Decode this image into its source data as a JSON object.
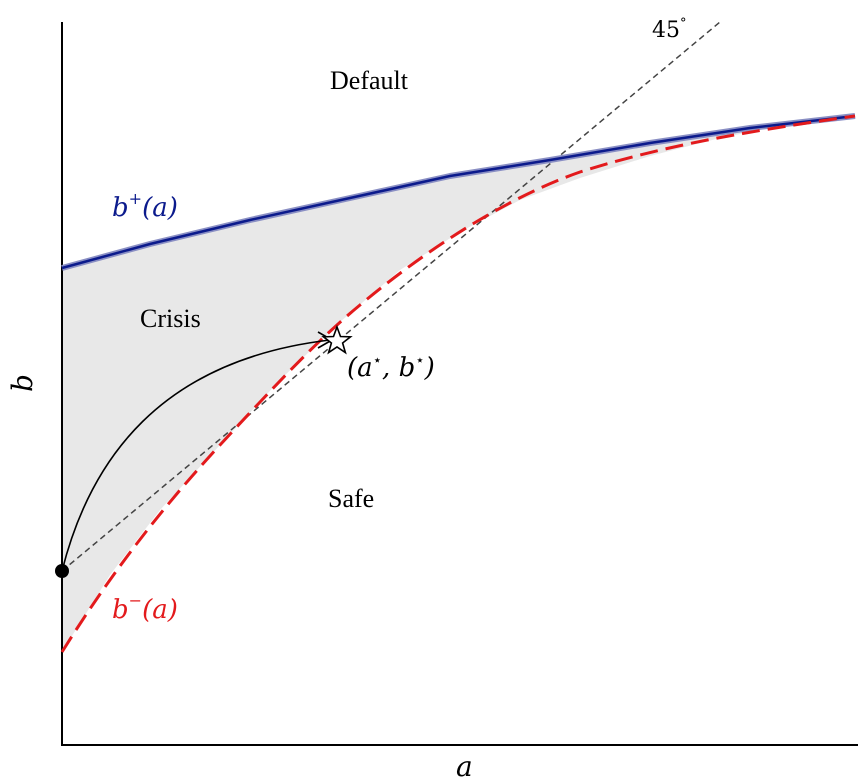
{
  "axes": {
    "x_label": "a",
    "y_label": "b"
  },
  "regions": {
    "default": "Default",
    "crisis": "Crisis",
    "safe": "Safe"
  },
  "curves": {
    "upper": {
      "label_main": "b",
      "label_sup": "+",
      "label_arg": "(a)",
      "color": "#0b1a8c"
    },
    "lower": {
      "label_main": "b",
      "label_sup": "−",
      "label_arg": "(a)",
      "color": "#e31a1c"
    }
  },
  "diagonal": {
    "label": "45",
    "label_sup": "°",
    "color": "#444444"
  },
  "fixed_point": {
    "label_open": "(a",
    "label_sup1": "⋆",
    "label_mid": ", b",
    "label_sup2": "⋆",
    "label_close": ")"
  },
  "colors": {
    "shade": "#e8e8e8",
    "axis": "#000000"
  }
}
